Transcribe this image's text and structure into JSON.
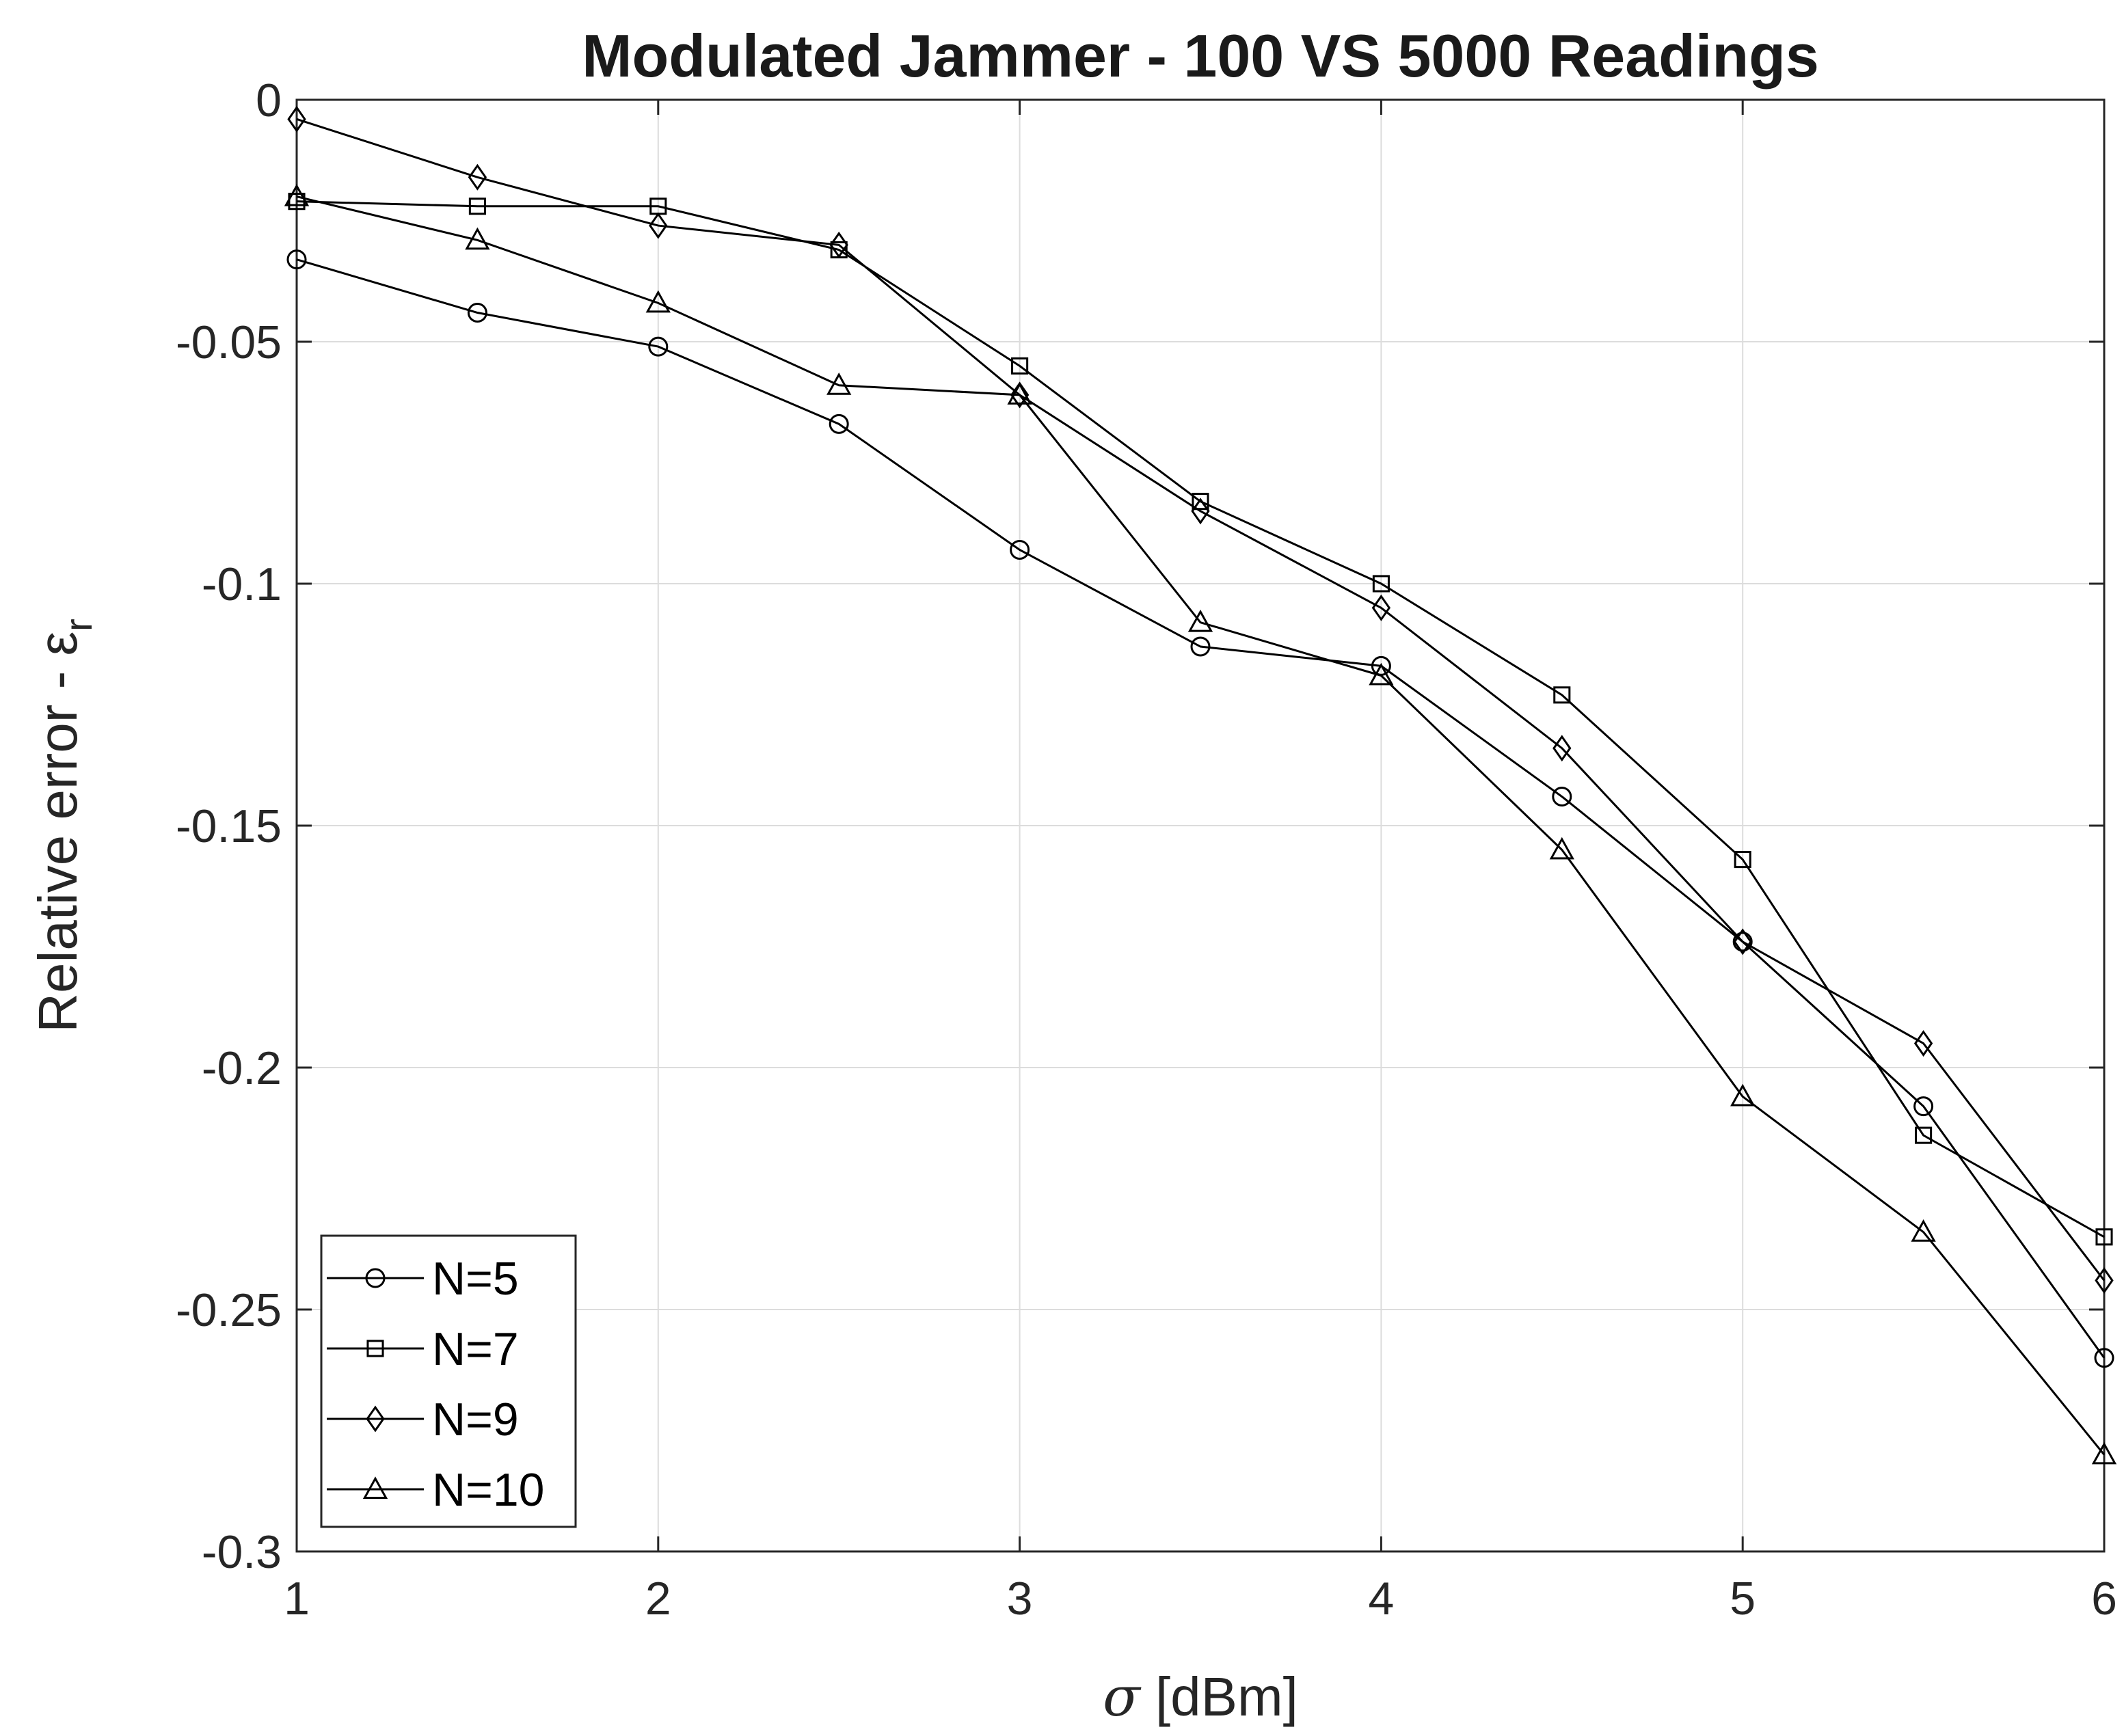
{
  "chart_data": {
    "type": "line",
    "title": "Modulated Jammer - 100 VS 5000 Readings",
    "xlabel_symbol": "σ",
    "xlabel_unit": " [dBm]",
    "ylabel_text": "Relative error - ε",
    "ylabel_subscript": "r",
    "xlim": [
      1,
      6
    ],
    "ylim": [
      -0.3,
      0
    ],
    "xticks": [
      1,
      2,
      3,
      4,
      5,
      6
    ],
    "xtick_labels": [
      "1",
      "2",
      "3",
      "4",
      "5",
      "6"
    ],
    "yticks": [
      0,
      -0.05,
      -0.1,
      -0.15,
      -0.2,
      -0.25,
      -0.3
    ],
    "ytick_labels": [
      "0",
      "-0.05",
      "-0.1",
      "-0.15",
      "-0.2",
      "-0.25",
      "-0.3"
    ],
    "grid": true,
    "legend_position": "bottom-left",
    "x": [
      1,
      1.5,
      2,
      2.5,
      3,
      3.5,
      4,
      4.5,
      5,
      5.5,
      6
    ],
    "series": [
      {
        "name": "N=5",
        "marker": "circle",
        "values": [
          -0.033,
          -0.044,
          -0.051,
          -0.067,
          -0.093,
          -0.113,
          -0.117,
          -0.144,
          -0.174,
          -0.208,
          -0.26
        ]
      },
      {
        "name": "N=7",
        "marker": "square",
        "values": [
          -0.021,
          -0.022,
          -0.022,
          -0.031,
          -0.055,
          -0.083,
          -0.1,
          -0.123,
          -0.157,
          -0.214,
          -0.235
        ]
      },
      {
        "name": "N=9",
        "marker": "diamond",
        "values": [
          -0.004,
          -0.016,
          -0.026,
          -0.03,
          -0.061,
          -0.085,
          -0.105,
          -0.134,
          -0.174,
          -0.195,
          -0.244
        ]
      },
      {
        "name": "N=10",
        "marker": "triangle",
        "values": [
          -0.02,
          -0.029,
          -0.042,
          -0.059,
          -0.061,
          -0.108,
          -0.119,
          -0.155,
          -0.206,
          -0.234,
          -0.28
        ]
      }
    ]
  }
}
